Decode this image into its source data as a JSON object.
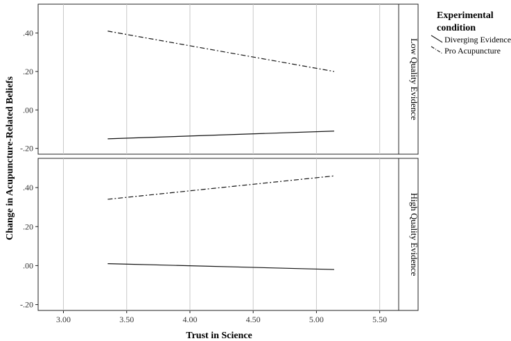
{
  "chart_data": {
    "type": "line",
    "xlabel": "Trust in Science",
    "ylabel": "Change in Acupuncture-Related Beliefs",
    "xlim": [
      2.8,
      5.65
    ],
    "x_ticks": [
      3.0,
      3.5,
      4.0,
      4.5,
      5.0,
      5.5
    ],
    "x_tick_labels": [
      "3.00",
      "3.50",
      "4.00",
      "4.50",
      "5.00",
      "5.50"
    ],
    "ylim": [
      -0.23,
      0.55
    ],
    "y_ticks": [
      -0.2,
      0.0,
      0.2,
      0.4
    ],
    "y_tick_labels": [
      "-.20",
      ".00",
      ".20",
      ".40"
    ],
    "grid": true,
    "legend": {
      "title": "Experimental condition",
      "placement": "right",
      "entries": [
        {
          "name": "Diverging Evidence",
          "style": "solid"
        },
        {
          "name": "Pro Acupuncture",
          "style": "dash-dot"
        }
      ]
    },
    "panels": [
      {
        "label": "Low Quality Evidence",
        "series": [
          {
            "name": "Diverging Evidence",
            "style": "solid",
            "x": [
              3.35,
              5.14
            ],
            "y": [
              -0.15,
              -0.11
            ]
          },
          {
            "name": "Pro Acupuncture",
            "style": "dash-dot",
            "x": [
              3.35,
              5.14
            ],
            "y": [
              0.41,
              0.2
            ]
          }
        ]
      },
      {
        "label": "High Quality Evidence",
        "series": [
          {
            "name": "Diverging Evidence",
            "style": "solid",
            "x": [
              3.35,
              5.14
            ],
            "y": [
              0.01,
              -0.02
            ]
          },
          {
            "name": "Pro Acupuncture",
            "style": "dash-dot",
            "x": [
              3.35,
              5.14
            ],
            "y": [
              0.34,
              0.46
            ]
          }
        ]
      }
    ]
  }
}
